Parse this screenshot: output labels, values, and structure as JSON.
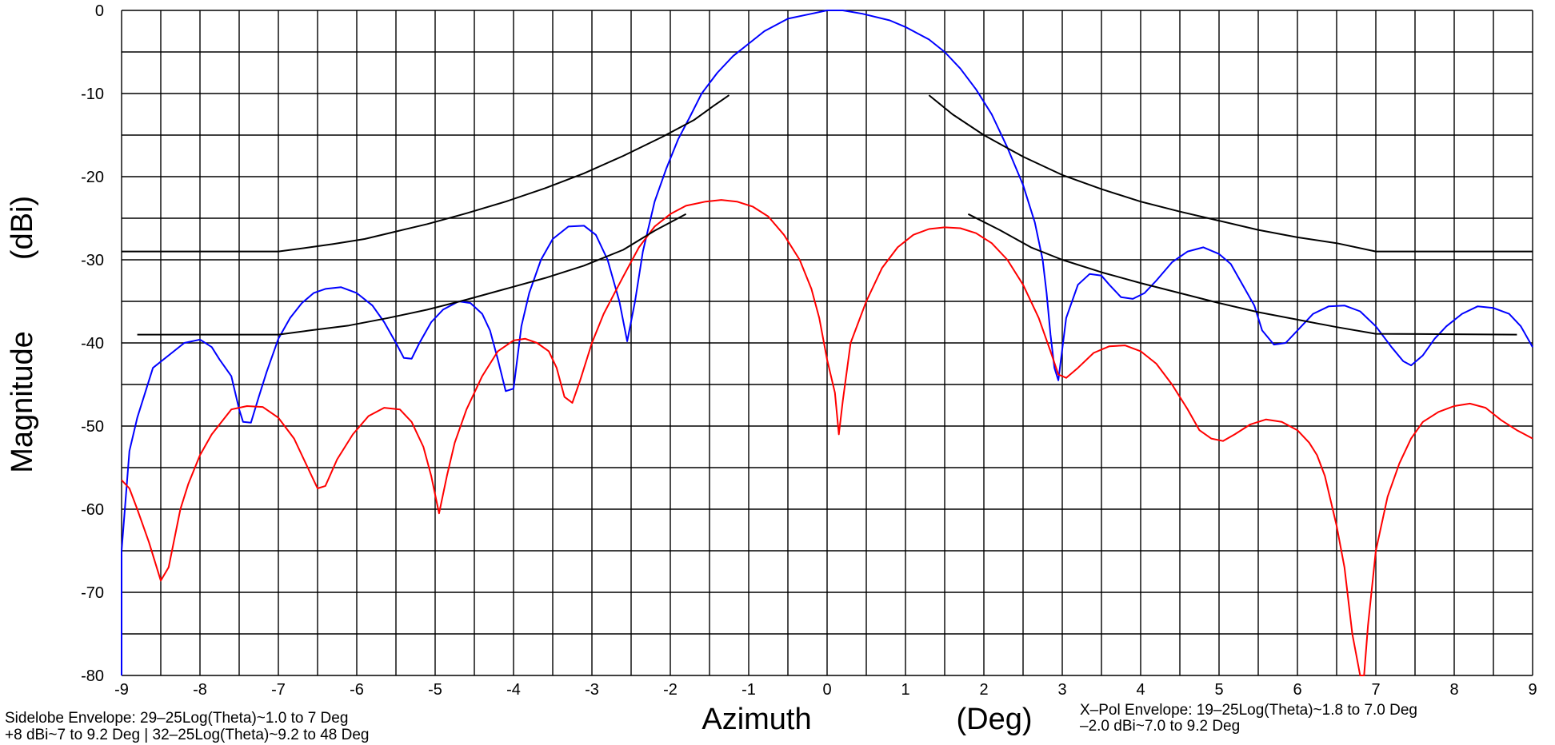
{
  "chart_data": {
    "type": "line",
    "xlabel_left": "Azimuth",
    "xlabel_right": "(Deg)",
    "ylabel_left": "Magnitude",
    "ylabel_right": "(dBi)",
    "xlim": [
      -9,
      9
    ],
    "ylim": [
      -80,
      0
    ],
    "x_ticks": [
      -9,
      -8,
      -7,
      -6,
      -5,
      -4,
      -3,
      -2,
      -1,
      0,
      1,
      2,
      3,
      4,
      5,
      6,
      7,
      8,
      9
    ],
    "y_ticks": [
      0,
      -10,
      -20,
      -30,
      -40,
      -50,
      -60,
      -70,
      -80
    ],
    "grid": true,
    "x_minor_step": 0.5,
    "y_minor_step": 5,
    "annotations": {
      "left_line1": "Sidelobe Envelope: 29–25Log(Theta)~1.0 to 7 Deg",
      "left_line2": "+8 dBi~7 to 9.2 Deg | 32–25Log(Theta)~9.2 to 48 Deg",
      "right_line1": "X–Pol Envelope: 19–25Log(Theta)~1.8 to 7.0 Deg",
      "right_line2": "–2.0 dBi~7.0 to 9.2 Deg"
    },
    "series": [
      {
        "color": "#0000ff",
        "points": [
          [
            -9,
            -80
          ],
          [
            -9,
            -65
          ],
          [
            -8.9,
            -53
          ],
          [
            -8.8,
            -49
          ],
          [
            -8.7,
            -46
          ],
          [
            -8.6,
            -43
          ],
          [
            -8.4,
            -41.5
          ],
          [
            -8.2,
            -40
          ],
          [
            -8,
            -39.6
          ],
          [
            -7.85,
            -40.5
          ],
          [
            -7.75,
            -42
          ],
          [
            -7.6,
            -44
          ],
          [
            -7.5,
            -48
          ],
          [
            -7.45,
            -49.5
          ],
          [
            -7.35,
            -49.6
          ],
          [
            -7.25,
            -46.5
          ],
          [
            -7.15,
            -43.5
          ],
          [
            -7,
            -39.5
          ],
          [
            -6.85,
            -37
          ],
          [
            -6.7,
            -35.2
          ],
          [
            -6.55,
            -34
          ],
          [
            -6.4,
            -33.5
          ],
          [
            -6.2,
            -33.3
          ],
          [
            -6,
            -34
          ],
          [
            -5.8,
            -35.5
          ],
          [
            -5.65,
            -37.5
          ],
          [
            -5.5,
            -40
          ],
          [
            -5.4,
            -41.8
          ],
          [
            -5.3,
            -41.9
          ],
          [
            -5.2,
            -40
          ],
          [
            -5.05,
            -37.5
          ],
          [
            -4.9,
            -36
          ],
          [
            -4.7,
            -35
          ],
          [
            -4.55,
            -35.2
          ],
          [
            -4.4,
            -36.5
          ],
          [
            -4.3,
            -38.5
          ],
          [
            -4.2,
            -42
          ],
          [
            -4.1,
            -45.8
          ],
          [
            -4,
            -45.5
          ],
          [
            -3.9,
            -38
          ],
          [
            -3.8,
            -34
          ],
          [
            -3.65,
            -30
          ],
          [
            -3.5,
            -27.5
          ],
          [
            -3.3,
            -26
          ],
          [
            -3.1,
            -25.9
          ],
          [
            -2.95,
            -27
          ],
          [
            -2.8,
            -30
          ],
          [
            -2.65,
            -35
          ],
          [
            -2.55,
            -39.8
          ],
          [
            -2.45,
            -35
          ],
          [
            -2.35,
            -29
          ],
          [
            -2.2,
            -23
          ],
          [
            -2.05,
            -19
          ],
          [
            -1.9,
            -15.5
          ],
          [
            -1.75,
            -12.8
          ],
          [
            -1.6,
            -10
          ],
          [
            -1.4,
            -7.5
          ],
          [
            -1.2,
            -5.5
          ],
          [
            -1,
            -4
          ],
          [
            -0.8,
            -2.5
          ],
          [
            -0.5,
            -1
          ],
          [
            -0.2,
            -0.4
          ],
          [
            0,
            0
          ],
          [
            0.2,
            0
          ],
          [
            0.45,
            -0.4
          ],
          [
            0.8,
            -1.2
          ],
          [
            1,
            -2
          ],
          [
            1.3,
            -3.5
          ],
          [
            1.5,
            -5
          ],
          [
            1.7,
            -7
          ],
          [
            1.9,
            -9.5
          ],
          [
            2.1,
            -12.5
          ],
          [
            2.3,
            -16.5
          ],
          [
            2.5,
            -21
          ],
          [
            2.65,
            -25.5
          ],
          [
            2.75,
            -30
          ],
          [
            2.8,
            -34
          ],
          [
            2.85,
            -39
          ],
          [
            2.9,
            -43
          ],
          [
            2.95,
            -44.5
          ],
          [
            3.05,
            -37
          ],
          [
            3.2,
            -33
          ],
          [
            3.35,
            -31.7
          ],
          [
            3.5,
            -31.9
          ],
          [
            3.6,
            -33
          ],
          [
            3.75,
            -34.5
          ],
          [
            3.9,
            -34.7
          ],
          [
            4.05,
            -34
          ],
          [
            4.2,
            -32.5
          ],
          [
            4.4,
            -30.3
          ],
          [
            4.6,
            -29
          ],
          [
            4.8,
            -28.5
          ],
          [
            5,
            -29.3
          ],
          [
            5.15,
            -30.5
          ],
          [
            5.3,
            -33
          ],
          [
            5.45,
            -35.5
          ],
          [
            5.55,
            -38.5
          ],
          [
            5.7,
            -40.2
          ],
          [
            5.85,
            -40
          ],
          [
            6,
            -38.5
          ],
          [
            6.2,
            -36.5
          ],
          [
            6.4,
            -35.6
          ],
          [
            6.6,
            -35.5
          ],
          [
            6.8,
            -36.2
          ],
          [
            7,
            -38
          ],
          [
            7.2,
            -40.5
          ],
          [
            7.35,
            -42.2
          ],
          [
            7.45,
            -42.7
          ],
          [
            7.6,
            -41.5
          ],
          [
            7.75,
            -39.5
          ],
          [
            7.9,
            -38
          ],
          [
            8.1,
            -36.5
          ],
          [
            8.3,
            -35.6
          ],
          [
            8.5,
            -35.8
          ],
          [
            8.7,
            -36.5
          ],
          [
            8.85,
            -38
          ],
          [
            9,
            -40.5
          ]
        ]
      },
      {
        "color": "#ff0000",
        "points": [
          [
            -9,
            -56.5
          ],
          [
            -8.9,
            -57.5
          ],
          [
            -8.8,
            -60
          ],
          [
            -8.65,
            -64
          ],
          [
            -8.5,
            -68.6
          ],
          [
            -8.4,
            -67
          ],
          [
            -8.25,
            -60
          ],
          [
            -8.15,
            -57
          ],
          [
            -8,
            -53.5
          ],
          [
            -7.85,
            -51
          ],
          [
            -7.6,
            -48
          ],
          [
            -7.4,
            -47.6
          ],
          [
            -7.2,
            -47.7
          ],
          [
            -7,
            -49
          ],
          [
            -6.8,
            -51.5
          ],
          [
            -6.65,
            -54.5
          ],
          [
            -6.5,
            -57.5
          ],
          [
            -6.4,
            -57.2
          ],
          [
            -6.25,
            -54
          ],
          [
            -6.05,
            -51
          ],
          [
            -5.85,
            -48.8
          ],
          [
            -5.65,
            -47.8
          ],
          [
            -5.45,
            -48
          ],
          [
            -5.3,
            -49.5
          ],
          [
            -5.15,
            -52.5
          ],
          [
            -5.05,
            -56
          ],
          [
            -4.95,
            -60.5
          ],
          [
            -4.85,
            -56
          ],
          [
            -4.75,
            -52
          ],
          [
            -4.6,
            -48
          ],
          [
            -4.4,
            -44
          ],
          [
            -4.2,
            -41
          ],
          [
            -4,
            -39.7
          ],
          [
            -3.85,
            -39.5
          ],
          [
            -3.7,
            -40
          ],
          [
            -3.55,
            -41
          ],
          [
            -3.45,
            -43
          ],
          [
            -3.35,
            -46.5
          ],
          [
            -3.25,
            -47.2
          ],
          [
            -3.15,
            -44.5
          ],
          [
            -3,
            -40
          ],
          [
            -2.85,
            -36.5
          ],
          [
            -2.6,
            -32
          ],
          [
            -2.4,
            -28.5
          ],
          [
            -2.2,
            -26
          ],
          [
            -2,
            -24.5
          ],
          [
            -1.8,
            -23.5
          ],
          [
            -1.55,
            -23
          ],
          [
            -1.35,
            -22.8
          ],
          [
            -1.15,
            -23
          ],
          [
            -0.95,
            -23.6
          ],
          [
            -0.75,
            -24.8
          ],
          [
            -0.55,
            -27
          ],
          [
            -0.35,
            -30
          ],
          [
            -0.2,
            -33.5
          ],
          [
            -0.1,
            -37
          ],
          [
            0,
            -42
          ],
          [
            0.1,
            -46
          ],
          [
            0.15,
            -51
          ],
          [
            0.2,
            -47
          ],
          [
            0.3,
            -40
          ],
          [
            0.5,
            -35
          ],
          [
            0.7,
            -31
          ],
          [
            0.9,
            -28.5
          ],
          [
            1.1,
            -27
          ],
          [
            1.3,
            -26.3
          ],
          [
            1.5,
            -26.1
          ],
          [
            1.7,
            -26.2
          ],
          [
            1.9,
            -26.8
          ],
          [
            2.1,
            -28
          ],
          [
            2.3,
            -30
          ],
          [
            2.5,
            -33
          ],
          [
            2.7,
            -37
          ],
          [
            2.85,
            -41
          ],
          [
            2.95,
            -43.8
          ],
          [
            3.05,
            -44.2
          ],
          [
            3.2,
            -43
          ],
          [
            3.4,
            -41.2
          ],
          [
            3.6,
            -40.4
          ],
          [
            3.8,
            -40.3
          ],
          [
            4,
            -41
          ],
          [
            4.2,
            -42.5
          ],
          [
            4.4,
            -45
          ],
          [
            4.6,
            -48
          ],
          [
            4.75,
            -50.5
          ],
          [
            4.9,
            -51.5
          ],
          [
            5.05,
            -51.8
          ],
          [
            5.2,
            -51
          ],
          [
            5.4,
            -49.8
          ],
          [
            5.6,
            -49.2
          ],
          [
            5.8,
            -49.5
          ],
          [
            6,
            -50.5
          ],
          [
            6.15,
            -52
          ],
          [
            6.25,
            -53.5
          ],
          [
            6.35,
            -56
          ],
          [
            6.5,
            -62
          ],
          [
            6.6,
            -67
          ],
          [
            6.7,
            -75
          ],
          [
            6.8,
            -80
          ],
          [
            6.85,
            -80
          ],
          [
            6.9,
            -74
          ],
          [
            7,
            -65
          ],
          [
            7.15,
            -58.5
          ],
          [
            7.3,
            -54.5
          ],
          [
            7.45,
            -51.5
          ],
          [
            7.6,
            -49.5
          ],
          [
            7.8,
            -48.3
          ],
          [
            8,
            -47.6
          ],
          [
            8.2,
            -47.3
          ],
          [
            8.4,
            -47.8
          ],
          [
            8.6,
            -49.3
          ],
          [
            8.8,
            -50.5
          ],
          [
            9,
            -51.5
          ]
        ]
      },
      {
        "color": "#000000",
        "points": [
          [
            -9,
            -29
          ],
          [
            -7,
            -29
          ],
          [
            -6.6,
            -28.5
          ],
          [
            -6.3,
            -28.1
          ],
          [
            -5.9,
            -27.5
          ],
          [
            -5.5,
            -26.6
          ],
          [
            -5.1,
            -25.7
          ],
          [
            -4.6,
            -24.4
          ],
          [
            -4.1,
            -23
          ],
          [
            -3.6,
            -21.4
          ],
          [
            -3.1,
            -19.6
          ],
          [
            -2.6,
            -17.5
          ],
          [
            -2.1,
            -15.2
          ],
          [
            -1.7,
            -13.2
          ],
          [
            -1.45,
            -11.5
          ],
          [
            -1.25,
            -10.2
          ]
        ]
      },
      {
        "color": "#000000",
        "points": [
          [
            1.3,
            -10.2
          ],
          [
            1.6,
            -12.5
          ],
          [
            2,
            -15
          ],
          [
            2.5,
            -17.6
          ],
          [
            3,
            -19.8
          ],
          [
            3.5,
            -21.5
          ],
          [
            4,
            -23
          ],
          [
            4.5,
            -24.2
          ],
          [
            5,
            -25.3
          ],
          [
            5.5,
            -26.4
          ],
          [
            6,
            -27.3
          ],
          [
            6.5,
            -28
          ],
          [
            7,
            -29
          ],
          [
            9,
            -29
          ]
        ]
      },
      {
        "color": "#000000",
        "points": [
          [
            -8.8,
            -39
          ],
          [
            -7,
            -39
          ],
          [
            -6.6,
            -38.5
          ],
          [
            -6.1,
            -37.9
          ],
          [
            -5.6,
            -37
          ],
          [
            -5.1,
            -36
          ],
          [
            -4.6,
            -34.8
          ],
          [
            -4.1,
            -33.5
          ],
          [
            -3.6,
            -32.2
          ],
          [
            -3.1,
            -30.7
          ],
          [
            -2.6,
            -28.8
          ],
          [
            -2.2,
            -26.5
          ],
          [
            -1.8,
            -24.5
          ]
        ]
      },
      {
        "color": "#000000",
        "points": [
          [
            1.8,
            -24.5
          ],
          [
            2.2,
            -26.4
          ],
          [
            2.6,
            -28.5
          ],
          [
            3,
            -30
          ],
          [
            3.5,
            -31.5
          ],
          [
            4,
            -32.8
          ],
          [
            4.5,
            -34
          ],
          [
            5,
            -35.2
          ],
          [
            5.5,
            -36.3
          ],
          [
            6,
            -37.2
          ],
          [
            6.5,
            -38.1
          ],
          [
            7,
            -38.9
          ],
          [
            8.8,
            -39
          ]
        ]
      }
    ]
  }
}
